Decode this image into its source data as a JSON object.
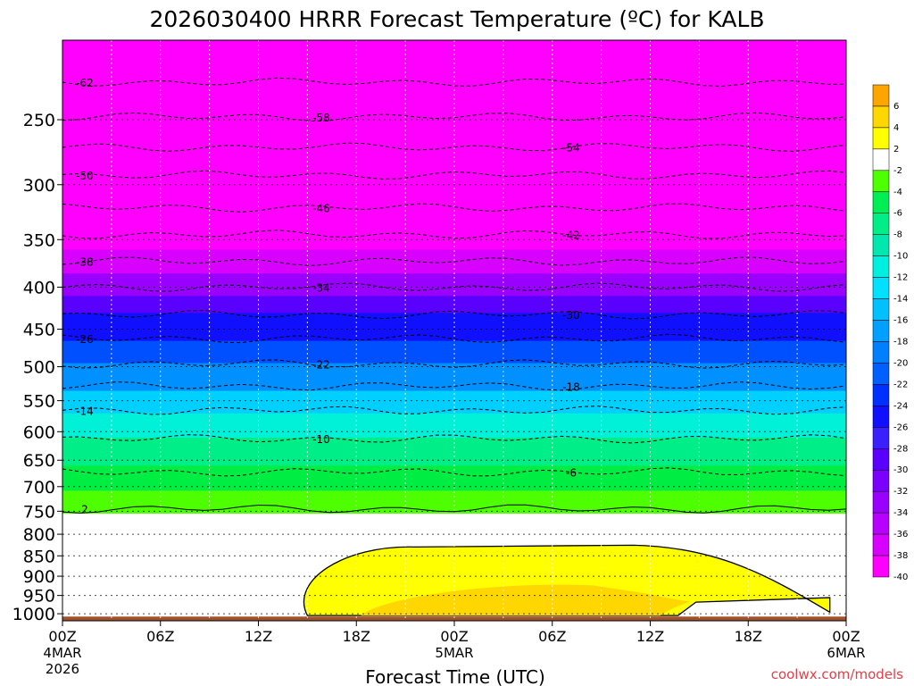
{
  "chart_data": {
    "type": "heatmap",
    "title": "2026030400 HRRR Forecast Temperature (ºC) for KALB",
    "xlabel": "Forecast Time (UTC)",
    "ylabel": "",
    "x_ticks": [
      {
        "label": "00Z",
        "sub": [
          "4MAR",
          "2026"
        ],
        "hour": 0
      },
      {
        "label": "06Z",
        "sub": [],
        "hour": 6
      },
      {
        "label": "12Z",
        "sub": [],
        "hour": 12
      },
      {
        "label": "18Z",
        "sub": [],
        "hour": 18
      },
      {
        "label": "00Z",
        "sub": [
          "5MAR"
        ],
        "hour": 24
      },
      {
        "label": "06Z",
        "sub": [],
        "hour": 30
      },
      {
        "label": "12Z",
        "sub": [],
        "hour": 36
      },
      {
        "label": "18Z",
        "sub": [],
        "hour": 42
      },
      {
        "label": "00Z",
        "sub": [
          "6MAR"
        ],
        "hour": 48
      }
    ],
    "xlim": [
      0,
      48
    ],
    "y_ticks": [
      250,
      300,
      350,
      400,
      450,
      500,
      550,
      600,
      650,
      700,
      750,
      800,
      850,
      900,
      950,
      1000
    ],
    "ylim_hPa": [
      1020,
      200
    ],
    "y_scale": "log-pressure",
    "colorbar": {
      "labels": [
        "6",
        "4",
        "2",
        "-2",
        "-4",
        "-6",
        "-8",
        "-10",
        "-12",
        "-14",
        "-16",
        "-18",
        "-20",
        "-22",
        "-24",
        "-26",
        "-28",
        "-30",
        "-32",
        "-34",
        "-36",
        "-38",
        "-40"
      ],
      "colors": [
        "#ffa500",
        "#ffd700",
        "#ffff00",
        "#ffffff",
        "#4dff00",
        "#00ee55",
        "#00ee88",
        "#00e8b0",
        "#00f0e0",
        "#00e0ff",
        "#00c0ff",
        "#00a0ff",
        "#0080ff",
        "#0060ff",
        "#0030ff",
        "#1010ff",
        "#3a20ff",
        "#5a00ff",
        "#7a00ff",
        "#9a00ff",
        "#b800ff",
        "#d800ff",
        "#ff00ff"
      ]
    },
    "isotherms": [
      {
        "label": "-62",
        "t": -62,
        "pressure": 225
      },
      {
        "label": "-58",
        "t": -58,
        "pressure": 248
      },
      {
        "label": "-54",
        "t": -54,
        "pressure": 270
      },
      {
        "label": "-50",
        "t": -50,
        "pressure": 292
      },
      {
        "label": "-46",
        "t": -46,
        "pressure": 320
      },
      {
        "label": "-42",
        "t": -42,
        "pressure": 345
      },
      {
        "label": "-38",
        "t": -38,
        "pressure": 372
      },
      {
        "label": "-34",
        "t": -34,
        "pressure": 400
      },
      {
        "label": "-30",
        "t": -30,
        "pressure": 432
      },
      {
        "label": "-26",
        "t": -26,
        "pressure": 462
      },
      {
        "label": "-22",
        "t": -22,
        "pressure": 496
      },
      {
        "label": "-18",
        "t": -18,
        "pressure": 528
      },
      {
        "label": "-14",
        "t": -14,
        "pressure": 565
      },
      {
        "label": "-10",
        "t": -10,
        "pressure": 612
      },
      {
        "label": "-6",
        "t": -6,
        "pressure": 672
      },
      {
        "label": "2",
        "t": 2,
        "pressure": 745
      }
    ],
    "layers": [
      {
        "p_top": 200,
        "p_bot": 390,
        "color": "#ff00ff"
      },
      {
        "p_top": 360,
        "p_bot": 400,
        "color": "#d800ff"
      },
      {
        "p_top": 385,
        "p_bot": 420,
        "color": "#9a00ff"
      },
      {
        "p_top": 410,
        "p_bot": 440,
        "color": "#5a00ff"
      },
      {
        "p_top": 430,
        "p_bot": 470,
        "color": "#1010ff"
      },
      {
        "p_top": 465,
        "p_bot": 500,
        "color": "#0050ff"
      },
      {
        "p_top": 495,
        "p_bot": 540,
        "color": "#0090ff"
      },
      {
        "p_top": 535,
        "p_bot": 575,
        "color": "#00d0ff"
      },
      {
        "p_top": 570,
        "p_bot": 615,
        "color": "#00f0d8"
      },
      {
        "p_top": 610,
        "p_bot": 665,
        "color": "#00ee88"
      },
      {
        "p_top": 660,
        "p_bot": 712,
        "color": "#00ee44"
      },
      {
        "p_top": 708,
        "p_bot": 760,
        "color": "#4dff00"
      },
      {
        "p_top": 755,
        "p_bot": 1020,
        "color": "#ffffff"
      }
    ],
    "warm_layer": {
      "p_top": 825,
      "p_bot": 1005,
      "x_start": 15,
      "x_end": 47,
      "color": "#ffff00",
      "core_color": "#ffd700"
    },
    "ground_color": "#a0522d",
    "credit": "coolwx.com/models"
  }
}
